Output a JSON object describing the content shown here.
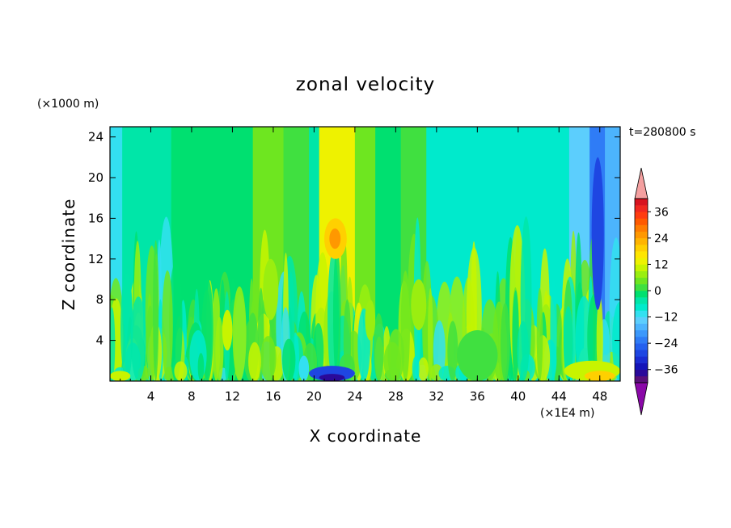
{
  "chart_data": {
    "type": "heatmap",
    "title": "zonal velocity",
    "xlabel": "X coordinate",
    "ylabel": "Z coordinate",
    "x_unit": "(×1E4 m)",
    "y_unit": "(×1000 m)",
    "time_label": "t=280800 s",
    "xlim": [
      0,
      50
    ],
    "ylim": [
      0,
      25
    ],
    "x_ticks": [
      4,
      8,
      12,
      16,
      20,
      24,
      28,
      32,
      36,
      40,
      44,
      48
    ],
    "y_ticks": [
      4,
      8,
      12,
      16,
      20,
      24
    ],
    "colorbar": {
      "levels": [
        -42,
        -39,
        -36,
        -33,
        -30,
        -27,
        -24,
        -21,
        -18,
        -15,
        -12,
        -9,
        -6,
        -3,
        0,
        3,
        6,
        9,
        12,
        15,
        18,
        21,
        24,
        27,
        30,
        33,
        36,
        39,
        42
      ],
      "labels": [
        36,
        24,
        12,
        0,
        -12,
        -24,
        -36
      ],
      "label_text": [
        "36",
        "24",
        "12",
        "0",
        "−12",
        "−24",
        "−36"
      ],
      "colors": [
        "#5a0f7a",
        "#2a0a9a",
        "#1414b8",
        "#1a2cd2",
        "#1e46e2",
        "#2460ee",
        "#2f7cf6",
        "#3c98fb",
        "#4cb4fd",
        "#5ccefd",
        "#33e0f0",
        "#00eacc",
        "#00e6a8",
        "#00e070",
        "#40e040",
        "#6ee620",
        "#9aee10",
        "#c8f400",
        "#eef200",
        "#ffe600",
        "#ffd000",
        "#ffb400",
        "#ff9800",
        "#ff7c00",
        "#ff5a00",
        "#ff3c10",
        "#f02820",
        "#d81420"
      ],
      "under_color": "#8a08a8",
      "over_color": "#f4a0a0"
    },
    "bands": [
      {
        "x": [
          0,
          1.2
        ],
        "v": -11
      },
      {
        "x": [
          1.2,
          6
        ],
        "v": -4
      },
      {
        "x": [
          6,
          10.5
        ],
        "v": -3
      },
      {
        "x": [
          10.5,
          14
        ],
        "v": -1
      },
      {
        "x": [
          14,
          17
        ],
        "v": 4
      },
      {
        "x": [
          17,
          19.5
        ],
        "v": 1
      },
      {
        "x": [
          19.5,
          20.5
        ],
        "v": -6
      },
      {
        "x": [
          20.5,
          24
        ],
        "v": 14
      },
      {
        "x": [
          24,
          26
        ],
        "v": 3
      },
      {
        "x": [
          26,
          28.5
        ],
        "v": -2
      },
      {
        "x": [
          28.5,
          31
        ],
        "v": 0
      },
      {
        "x": [
          31,
          37
        ],
        "v": -9
      },
      {
        "x": [
          37,
          45
        ],
        "v": -8
      },
      {
        "x": [
          45,
          47
        ],
        "v": -14
      },
      {
        "x": [
          47,
          48.5
        ],
        "v": -24
      },
      {
        "x": [
          48.5,
          50
        ],
        "v": -16
      }
    ],
    "features": [
      {
        "x": [
          21,
          23.2
        ],
        "z": [
          12,
          16
        ],
        "v": 20
      },
      {
        "x": [
          21.5,
          22.6
        ],
        "z": [
          13,
          15
        ],
        "v": 26
      },
      {
        "x": [
          19.5,
          24
        ],
        "z": [
          0,
          1.5
        ],
        "v": -30
      },
      {
        "x": [
          20.5,
          23
        ],
        "z": [
          0,
          0.7
        ],
        "v": -38
      },
      {
        "x": [
          18.5,
          19.5
        ],
        "z": [
          0,
          2.5
        ],
        "v": -12
      },
      {
        "x": [
          34,
          38
        ],
        "z": [
          0,
          5
        ],
        "v": 2
      },
      {
        "x": [
          44.5,
          50
        ],
        "z": [
          0,
          2
        ],
        "v": 10
      },
      {
        "x": [
          46.5,
          49.5
        ],
        "z": [
          0,
          1
        ],
        "v": 18
      },
      {
        "x": [
          0,
          2
        ],
        "z": [
          0,
          1
        ],
        "v": 9
      },
      {
        "x": [
          47.2,
          48.4
        ],
        "z": [
          7,
          22
        ],
        "v": -28
      },
      {
        "x": [
          15,
          16.5
        ],
        "z": [
          6,
          12
        ],
        "v": 8
      },
      {
        "x": [
          29.5,
          31
        ],
        "z": [
          5,
          10
        ],
        "v": 7
      },
      {
        "x": [
          11,
          12
        ],
        "z": [
          3,
          7
        ],
        "v": 9
      },
      {
        "x": [
          25,
          26
        ],
        "z": [
          4,
          8
        ],
        "v": 6
      }
    ]
  }
}
